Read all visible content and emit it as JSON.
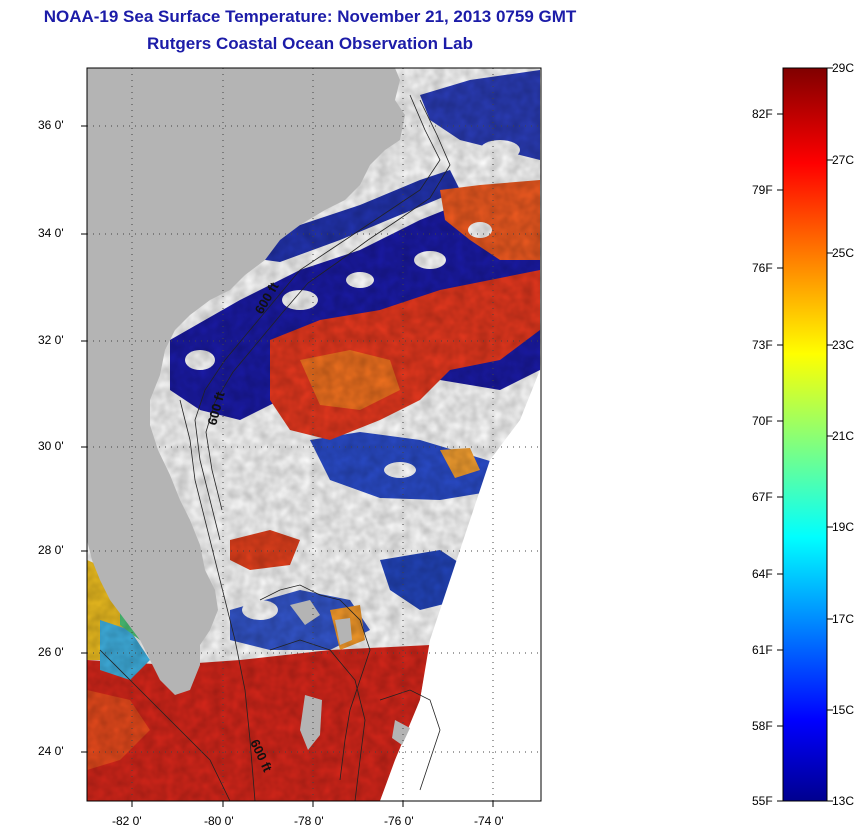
{
  "title": "NOAA-19 Sea Surface Temperature:  November 21, 2013 0759 GMT",
  "subtitle": "Rutgers Coastal Ocean Observation Lab",
  "lat_ticks": [
    "36 0'",
    "34 0'",
    "32 0'",
    "30 0'",
    "28 0'",
    "26 0'",
    "24 0'"
  ],
  "lon_ticks": [
    "-82 0'",
    "-80 0'",
    "-78 0'",
    "-76 0'",
    "-74 0'"
  ],
  "contour_labels": [
    "600 ft",
    "600 ft",
    "600 ft"
  ],
  "colorbar": {
    "celsius": [
      "29C",
      "27C",
      "25C",
      "23C",
      "21C",
      "19C",
      "17C",
      "15C",
      "13C"
    ],
    "fahrenheit": [
      "82F",
      "79F",
      "76F",
      "73F",
      "70F",
      "67F",
      "64F",
      "61F",
      "58F",
      "55F"
    ],
    "min_c": 13,
    "max_c": 29
  },
  "colors": {
    "land": "#b4b4b4",
    "title": "#1c1ca8"
  }
}
